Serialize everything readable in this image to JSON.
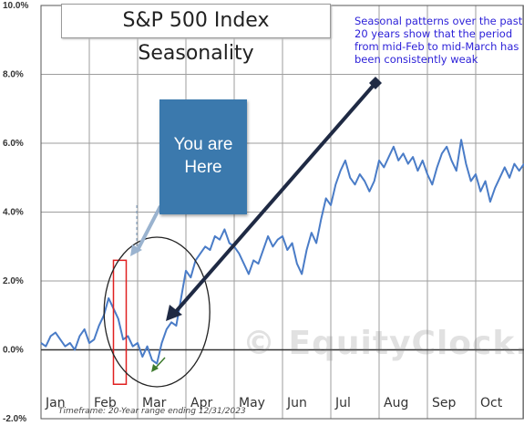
{
  "chart_data": {
    "type": "line",
    "title": "S&P 500 Index Seasonality",
    "annotation": "Seasonal patterns over the past 20 years show that the period from mid-Feb to mid-March has been consistently weak",
    "callout": "You are Here",
    "source_note": "Timeframe: 20-Year range ending 12/31/2023",
    "watermark": "© EquityClock.com",
    "ylim": [
      -2.0,
      10.0
    ],
    "yticks": [
      "10.0%",
      "8.0%",
      "6.0%",
      "4.0%",
      "2.0%",
      "0.0%",
      "-2.0%"
    ],
    "ytick_values": [
      10,
      8,
      6,
      4,
      2,
      0,
      -2
    ],
    "xticks": [
      "Jan",
      "Feb",
      "Mar",
      "Apr",
      "May",
      "Jun",
      "Jul",
      "Aug",
      "Sep",
      "Oct"
    ],
    "grid": true,
    "series": [
      {
        "color": "#4a7cc7",
        "x": [
          0.0,
          0.1,
          0.2,
          0.3,
          0.4,
          0.5,
          0.6,
          0.7,
          0.8,
          0.9,
          1.0,
          1.1,
          1.2,
          1.3,
          1.4,
          1.5,
          1.6,
          1.7,
          1.8,
          1.9,
          2.0,
          2.1,
          2.2,
          2.3,
          2.4,
          2.5,
          2.6,
          2.7,
          2.8,
          2.9,
          3.0,
          3.1,
          3.2,
          3.3,
          3.4,
          3.5,
          3.6,
          3.7,
          3.8,
          3.9,
          4.0,
          4.1,
          4.2,
          4.3,
          4.4,
          4.5,
          4.6,
          4.7,
          4.8,
          4.9,
          5.0,
          5.1,
          5.2,
          5.3,
          5.4,
          5.5,
          5.6,
          5.7,
          5.8,
          5.9,
          6.0,
          6.1,
          6.2,
          6.3,
          6.4,
          6.5,
          6.6,
          6.7,
          6.8,
          6.9,
          7.0,
          7.1,
          7.2,
          7.3,
          7.4,
          7.5,
          7.6,
          7.7,
          7.8,
          7.9,
          8.0,
          8.1,
          8.2,
          8.3,
          8.4,
          8.5,
          8.6,
          8.7,
          8.8,
          8.9,
          9.0,
          9.1,
          9.2,
          9.3,
          9.4,
          9.5,
          9.6,
          9.7,
          9.8,
          9.9,
          10.0
        ],
        "values": [
          0.2,
          0.1,
          0.4,
          0.5,
          0.3,
          0.1,
          0.2,
          0.0,
          0.4,
          0.6,
          0.2,
          0.3,
          0.7,
          1.0,
          1.5,
          1.2,
          0.9,
          0.3,
          0.4,
          0.1,
          0.2,
          -0.2,
          0.1,
          -0.3,
          -0.4,
          0.2,
          0.6,
          0.8,
          0.7,
          1.5,
          2.3,
          2.1,
          2.6,
          2.8,
          3.0,
          2.9,
          3.3,
          3.2,
          3.5,
          3.1,
          3.0,
          2.8,
          2.5,
          2.2,
          2.6,
          2.5,
          2.9,
          3.3,
          3.0,
          3.2,
          3.3,
          2.9,
          3.1,
          2.5,
          2.2,
          2.9,
          3.4,
          3.1,
          3.8,
          4.4,
          4.2,
          4.8,
          5.2,
          5.5,
          5.0,
          4.8,
          5.1,
          4.9,
          4.6,
          4.9,
          5.5,
          5.3,
          5.6,
          5.9,
          5.5,
          5.7,
          5.4,
          5.6,
          5.2,
          5.5,
          5.1,
          4.8,
          5.3,
          5.7,
          5.9,
          5.5,
          5.2,
          6.1,
          5.4,
          4.9,
          5.1,
          4.6,
          4.9,
          4.3,
          4.7,
          5.0,
          5.3,
          5.0,
          5.4,
          5.2,
          5.4
        ]
      }
    ]
  }
}
